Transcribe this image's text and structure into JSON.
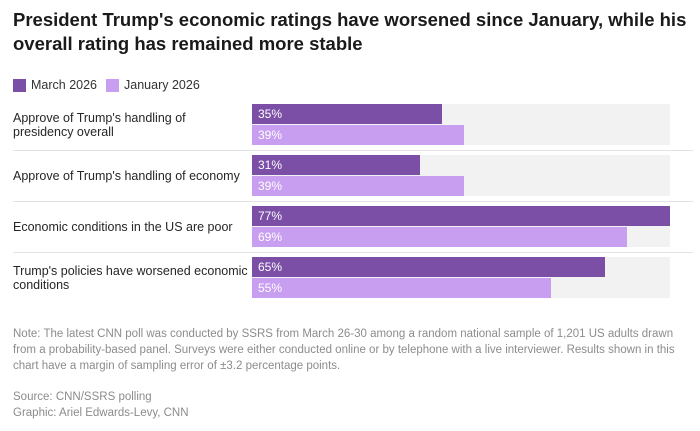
{
  "title": "President Trump's economic ratings have worsened since January, while his overall rating has remained more stable",
  "legend": [
    {
      "label": "March 2026",
      "color": "#7b4fa6"
    },
    {
      "label": "January 2026",
      "color": "#c89ef0"
    }
  ],
  "chart_data": {
    "type": "bar",
    "orientation": "horizontal",
    "title": "President Trump's economic ratings have worsened since January, while his overall rating has remained more stable",
    "xlim": [
      0,
      77
    ],
    "unit": "%",
    "categories": [
      "Approve of Trump's handling of presidency overall",
      "Approve of Trump's handling of economy",
      "Economic conditions in the US are poor",
      "Trump's policies have worsened economic conditions"
    ],
    "series": [
      {
        "name": "March 2026",
        "color": "#7b4fa6",
        "values": [
          35,
          31,
          77,
          65
        ],
        "labels": [
          "35%",
          "31%",
          "77%",
          "65%"
        ]
      },
      {
        "name": "January 2026",
        "color": "#c89ef0",
        "values": [
          39,
          39,
          69,
          55
        ],
        "labels": [
          "39%",
          "39%",
          "69%",
          "55%"
        ]
      }
    ]
  },
  "note": "Note: The latest CNN poll was conducted by SSRS from March 26-30 among a random national sample of 1,201 US adults drawn from a probability-based panel. Surveys were either conducted online or by telephone with a live interviewer. Results shown in this chart have a margin of sampling error of ±3.2 percentage points.",
  "source": "Source: CNN/SSRS polling",
  "graphic": "Graphic: Ariel Edwards-Levy, CNN"
}
